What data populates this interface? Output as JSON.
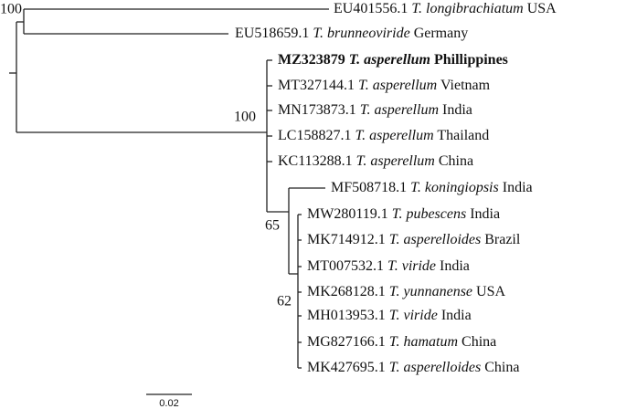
{
  "leaves": [
    {
      "accession": "EU401556.1",
      "species": "T. longibrachiatum",
      "country": "USA"
    },
    {
      "accession": "EU518659.1",
      "species": "T. brunneoviride",
      "country": "Germany"
    },
    {
      "accession": "MZ323879",
      "species": "T. asperellum",
      "country": "Phillippines"
    },
    {
      "accession": "MT327144.1",
      "species": "T. asperellum",
      "country": "Vietnam"
    },
    {
      "accession": "MN173873.1",
      "species": "T. asperellum",
      "country": "India"
    },
    {
      "accession": "LC158827.1",
      "species": "T. asperellum",
      "country": "Thailand"
    },
    {
      "accession": "KC113288.1",
      "species": "T. asperellum",
      "country": "China"
    },
    {
      "accession": "MF508718.1",
      "species": "T. koningiopsis",
      "country": "India"
    },
    {
      "accession": "MW280119.1",
      "species": "T. pubescens",
      "country": "India"
    },
    {
      "accession": "MK714912.1",
      "species": "T. asperelloides",
      "country": "Brazil"
    },
    {
      "accession": "MT007532.1",
      "species": "T. viride",
      "country": "India"
    },
    {
      "accession": "MK268128.1",
      "species": "T. yunnanense",
      "country": "USA"
    },
    {
      "accession": "MH013953.1",
      "species": "T. viride",
      "country": "India"
    },
    {
      "accession": "MG827166.1",
      "species": "T. hamatum",
      "country": "China"
    },
    {
      "accession": "MK427695.1",
      "species": "T. asperelloides",
      "country": "China"
    }
  ],
  "bootstrap": [
    100,
    100,
    65,
    62
  ],
  "scale_bar": 0.02
}
